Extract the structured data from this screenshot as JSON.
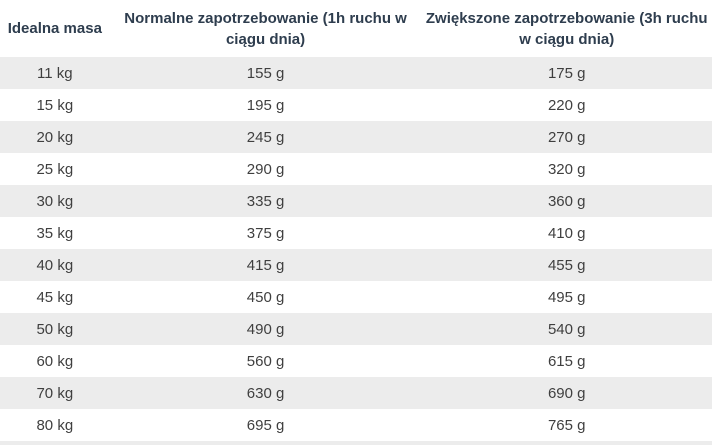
{
  "colors": {
    "header_text": "#2e3d4e",
    "body_text": "#3f3f3f",
    "stripe": "#ececec",
    "row_white": "#ffffff"
  },
  "chart_data": {
    "type": "table",
    "columns": [
      "Idealna masa",
      "Normalne zapotrzebowanie (1h ruchu w ciągu dnia)",
      "Zwiększone zapotrzebowanie (3h ruchu w ciągu dnia)"
    ],
    "rows": [
      [
        "11 kg",
        "155 g",
        "175 g"
      ],
      [
        "15 kg",
        "195 g",
        "220 g"
      ],
      [
        "20 kg",
        "245 g",
        "270 g"
      ],
      [
        "25 kg",
        "290 g",
        "320 g"
      ],
      [
        "30 kg",
        "335 g",
        "360 g"
      ],
      [
        "35 kg",
        "375 g",
        "410 g"
      ],
      [
        "40 kg",
        "415 g",
        "455 g"
      ],
      [
        "45 kg",
        "450 g",
        "495 g"
      ],
      [
        "50 kg",
        "490 g",
        "540 g"
      ],
      [
        "60 kg",
        "560 g",
        "615 g"
      ],
      [
        "70 kg",
        "630 g",
        "690 g"
      ],
      [
        "80 kg",
        "695 g",
        "765 g"
      ]
    ],
    "layout": {
      "striped": true,
      "stripe_rows": "odd",
      "header_lines_max": 2,
      "grid": false,
      "legend": false
    },
    "units": {
      "mass": "kg",
      "amount": "g"
    }
  }
}
